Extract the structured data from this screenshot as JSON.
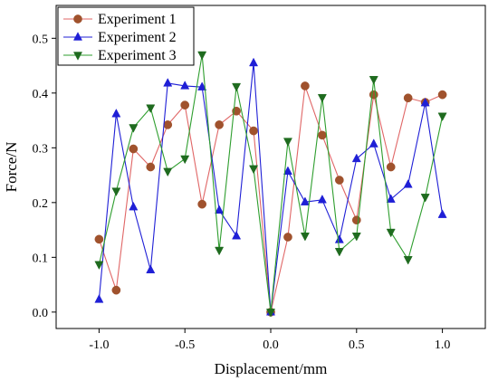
{
  "chart_data": {
    "type": "line",
    "title": "",
    "xlabel": "Displacement/mm",
    "ylabel": "Force/N",
    "xlim": [
      -1.25,
      1.25
    ],
    "ylim": [
      -0.03,
      0.56
    ],
    "xticks": [
      -1.0,
      -0.5,
      0.0,
      0.5,
      1.0
    ],
    "xtick_labels": [
      "-1.0",
      "-0.5",
      "0.0",
      "0.5",
      "1.0"
    ],
    "yticks": [
      0.0,
      0.1,
      0.2,
      0.3,
      0.4,
      0.5
    ],
    "ytick_labels": [
      "0.0",
      "0.1",
      "0.2",
      "0.3",
      "0.4",
      "0.5"
    ],
    "grid": false,
    "legend_position": "top-left",
    "x": [
      -1.0,
      -0.9,
      -0.8,
      -0.7,
      -0.6,
      -0.5,
      -0.4,
      -0.3,
      -0.2,
      -0.1,
      0.0,
      0.1,
      0.2,
      0.3,
      0.4,
      0.5,
      0.6,
      0.7,
      0.8,
      0.9,
      1.0
    ],
    "series": [
      {
        "name": "Experiment 1",
        "marker": "circle",
        "color": "#e06666",
        "marker_color": "#a0522d",
        "values": [
          0.133,
          0.04,
          0.298,
          0.265,
          0.342,
          0.378,
          0.197,
          0.342,
          0.367,
          0.331,
          0.0,
          0.137,
          0.413,
          0.323,
          0.241,
          0.168,
          0.397,
          0.265,
          0.391,
          0.383,
          0.397
        ]
      },
      {
        "name": "Experiment 2",
        "marker": "triangle-up",
        "color": "#1f1fd6",
        "marker_color": "#1f1fd6",
        "values": [
          0.023,
          0.362,
          0.192,
          0.077,
          0.418,
          0.413,
          0.411,
          0.186,
          0.139,
          0.455,
          0.0,
          0.257,
          0.201,
          0.205,
          0.132,
          0.28,
          0.307,
          0.206,
          0.233,
          0.382,
          0.178
        ]
      },
      {
        "name": "Experiment 3",
        "marker": "triangle-down",
        "color": "#2e9e2e",
        "marker_color": "#1f6b1f",
        "values": [
          0.087,
          0.221,
          0.337,
          0.373,
          0.257,
          0.28,
          0.47,
          0.113,
          0.412,
          0.262,
          0.0,
          0.312,
          0.139,
          0.392,
          0.111,
          0.139,
          0.425,
          0.146,
          0.096,
          0.21,
          0.358
        ]
      }
    ]
  }
}
